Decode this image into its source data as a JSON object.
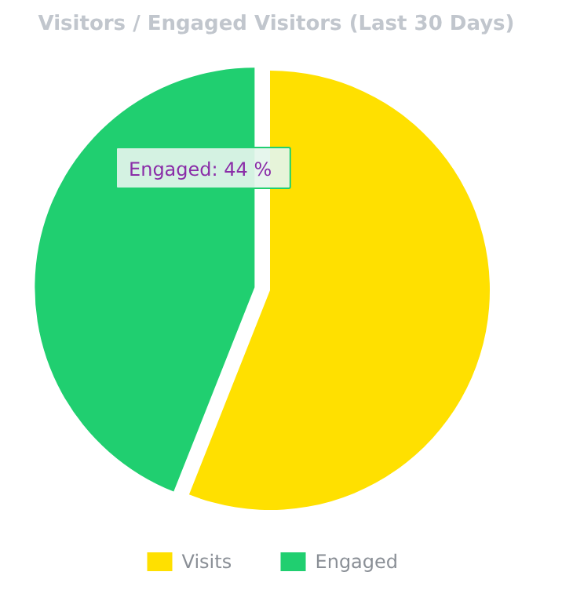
{
  "chart_data": {
    "type": "pie",
    "title": "Visitors / Engaged Visitors (Last 30 Days)",
    "categories": [
      "Visits",
      "Engaged"
    ],
    "values": [
      56,
      44
    ],
    "colors": [
      "#ffe000",
      "#20cf70"
    ],
    "legend": "bottom",
    "annotations": [
      "Engaged: 44 %"
    ]
  }
}
